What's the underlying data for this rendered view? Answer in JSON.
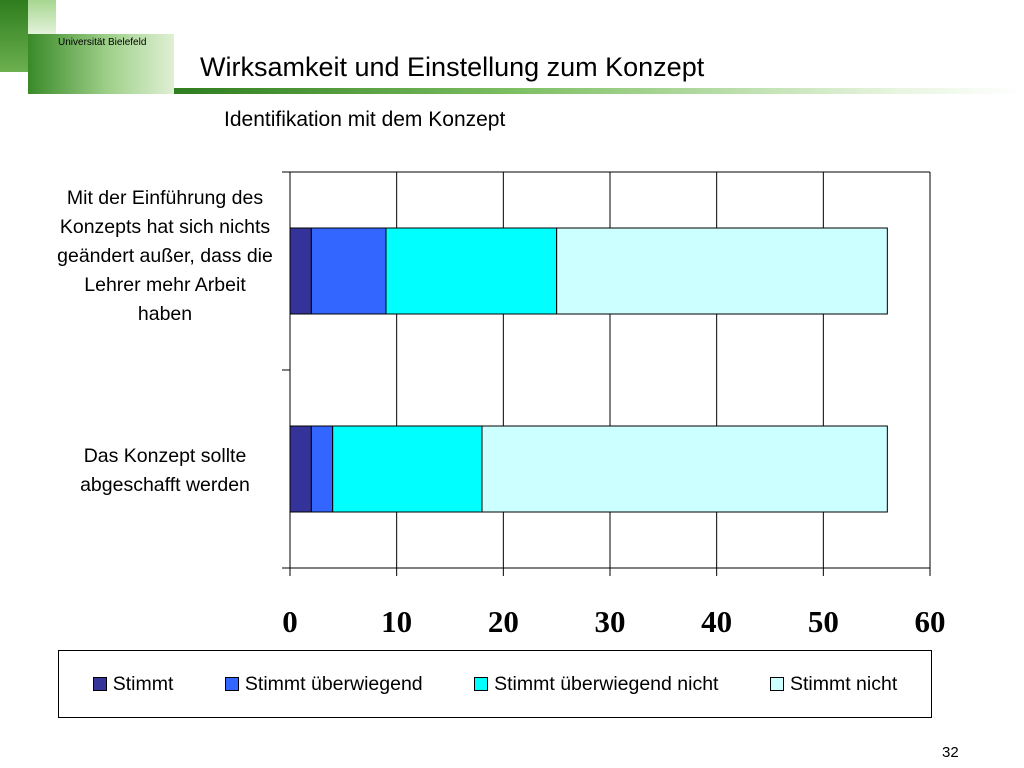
{
  "slide": {
    "title": "Wirksamkeit und Einstellung zum Konzept",
    "logo_text": "Universität Bielefeld",
    "page_number": "32"
  },
  "colors": {
    "green_dark": "#2e7d1e",
    "green_light": "#c8e6b4",
    "stimmt": "#333399",
    "stimmt_ueberwiegend": "#3366ff",
    "stimmt_ueberwiegend_nicht": "#00ffff",
    "stimmt_nicht": "#ccffff"
  },
  "chart_data": {
    "type": "bar",
    "orientation": "horizontal",
    "stacked": true,
    "title": "Identifikation mit dem Konzept",
    "categories": [
      "Mit der Einführung des Konzepts hat sich nichts geändert außer, dass die Lehrer mehr Arbeit haben",
      "Das Konzept sollte abgeschafft werden"
    ],
    "series": [
      {
        "name": "Stimmt",
        "values": [
          2,
          2
        ],
        "color": "#333399"
      },
      {
        "name": "Stimmt überwiegend",
        "values": [
          7,
          2
        ],
        "color": "#3366ff"
      },
      {
        "name": "Stimmt überwiegend nicht",
        "values": [
          16,
          14
        ],
        "color": "#00ffff"
      },
      {
        "name": "Stimmt nicht",
        "values": [
          31,
          38
        ],
        "color": "#ccffff"
      }
    ],
    "xlim": [
      0,
      60
    ],
    "xticks": [
      "0",
      "10",
      "20",
      "30",
      "40",
      "50",
      "60"
    ],
    "grid": true,
    "legend_position": "bottom"
  }
}
